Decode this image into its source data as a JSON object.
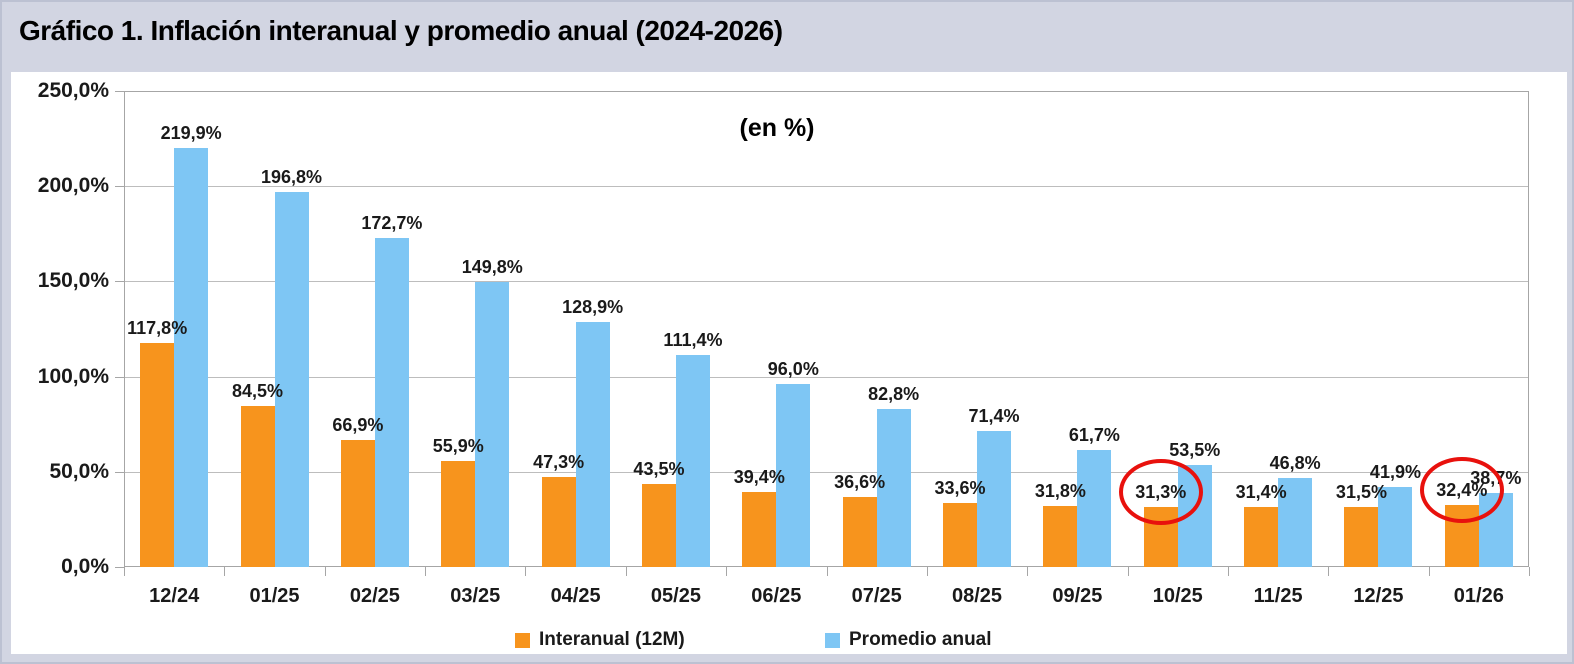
{
  "header": {
    "title": "Gráfico 1. Inflación interanual y promedio anual (2024-2026)"
  },
  "chart_data": {
    "type": "bar",
    "title": "Gráfico 1. Inflación interanual y promedio anual (2024-2026)",
    "subtitle": "(en %)",
    "categories": [
      "12/24",
      "01/25",
      "02/25",
      "03/25",
      "04/25",
      "05/25",
      "06/25",
      "07/25",
      "08/25",
      "09/25",
      "10/25",
      "11/25",
      "12/25",
      "01/26"
    ],
    "series": [
      {
        "name": "Interanual (12M)",
        "color": "#F7941D",
        "values": [
          117.8,
          84.5,
          66.9,
          55.9,
          47.3,
          43.5,
          39.4,
          36.6,
          33.6,
          31.8,
          31.3,
          31.4,
          31.5,
          32.4
        ],
        "labels": [
          "117,8%",
          "84,5%",
          "66,9%",
          "55,9%",
          "47,3%",
          "43,5%",
          "39,4%",
          "36,6%",
          "33,6%",
          "31,8%",
          "31,3%",
          "31,4%",
          "31,5%",
          "32,4%"
        ]
      },
      {
        "name": "Promedio anual",
        "color": "#7EC6F4",
        "values": [
          219.9,
          196.8,
          172.7,
          149.8,
          128.9,
          111.4,
          96.0,
          82.8,
          71.4,
          61.7,
          53.5,
          46.8,
          41.9,
          38.7
        ],
        "labels": [
          "219,9%",
          "196,8%",
          "172,7%",
          "149,8%",
          "128,9%",
          "111,4%",
          "96,0%",
          "82,8%",
          "71,4%",
          "61,7%",
          "53,5%",
          "46,8%",
          "41,9%",
          "38,7%"
        ]
      }
    ],
    "ylim": [
      0,
      250
    ],
    "yticks": {
      "values": [
        0,
        50,
        100,
        150,
        200,
        250
      ],
      "labels": [
        "0,0%",
        "50,0%",
        "100,0%",
        "150,0%",
        "200,0%",
        "250,0%"
      ]
    },
    "grid": true,
    "legend_position": "bottom",
    "annotations": [
      {
        "type": "ellipse",
        "color": "#E8110D",
        "series": "Interanual (12M)",
        "series_index": 0,
        "category": "10/25",
        "index": 10,
        "value_label": "31,3%"
      },
      {
        "type": "ellipse",
        "color": "#E8110D",
        "series": "Interanual (12M)",
        "series_index": 0,
        "category": "01/26",
        "index": 13,
        "value_label": "32,4%"
      }
    ]
  }
}
